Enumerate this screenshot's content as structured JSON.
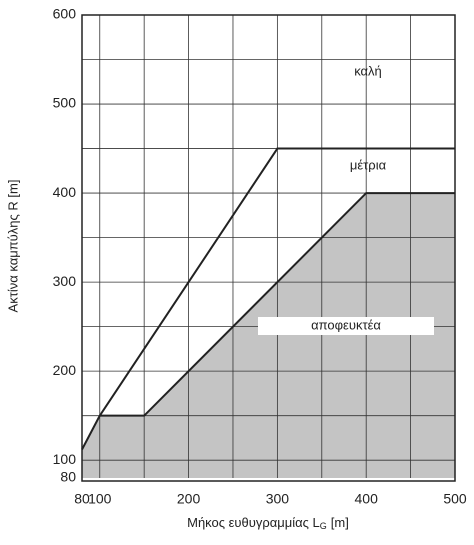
{
  "chart_data": {
    "type": "line",
    "y_label": "Ακτίνα καμπύλης R [m]",
    "x_label": "Μήκος ευθυγραμμίας L",
    "x_label_sub": "G",
    "x_label_unit": "[m]",
    "xlim": [
      80,
      500
    ],
    "ylim": [
      80,
      600
    ],
    "xticks": [
      80,
      100,
      200,
      300,
      400,
      500
    ],
    "yticks": [
      80,
      100,
      200,
      300,
      400,
      500,
      600
    ],
    "xgrid": [
      80,
      100,
      150,
      200,
      250,
      300,
      350,
      400,
      450,
      500
    ],
    "ygrid": [
      100,
      150,
      200,
      250,
      300,
      350,
      400,
      450,
      500,
      550,
      600
    ],
    "grid": true,
    "series": [
      {
        "color": "#222222",
        "fill": "#c4c4c4",
        "x": [
          80,
          100,
          150,
          400,
          500
        ],
        "values": [
          112,
          150,
          150,
          400,
          400
        ]
      },
      {
        "color": "#222222",
        "x": [
          100,
          300,
          500
        ],
        "values": [
          150,
          450,
          450
        ]
      }
    ],
    "annotations": [
      "καλή",
      "μέτρια",
      "αποφευκτέα"
    ]
  }
}
